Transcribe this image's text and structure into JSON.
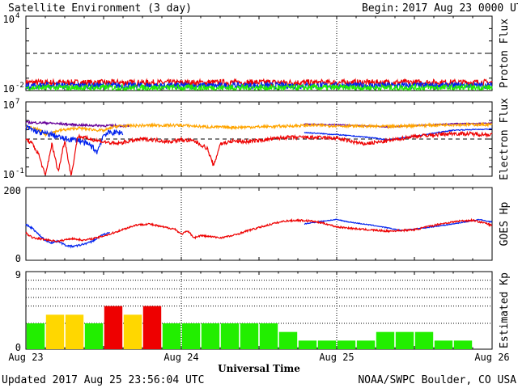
{
  "header": {
    "title": "Satellite Environment (3 day)",
    "begin_label": "Begin:",
    "begin_value": "2017 Aug 23 0000 UTC"
  },
  "footer": {
    "updated": "Updated 2017 Aug 25 23:56:04 UTC",
    "credit": "NOAA/SWPC Boulder, CO USA"
  },
  "colors": {
    "red": "#ee0000",
    "blue": "#0022ee",
    "green": "#22ee00",
    "orange": "#ffa500",
    "purple": "#660099",
    "yellow": "#ffd700"
  },
  "chart_data": [
    {
      "type": "line",
      "panel": "proton",
      "ylabel": "Proton Flux",
      "yscale": "log",
      "ylim": [
        0.01,
        10000
      ],
      "y_tick_labels": [
        {
          "base": "10",
          "exp": "4"
        },
        {
          "base": "10",
          "exp": "-2"
        }
      ],
      "reference_lines": [
        10
      ],
      "x_unit": "hours since Aug 23 00 UTC",
      "series": [
        {
          "color": "red",
          "noise": 0.25,
          "points": [
            [
              0,
              0.045
            ],
            [
              12,
              0.044
            ],
            [
              24,
              0.043
            ],
            [
              36,
              0.045
            ],
            [
              48,
              0.044
            ],
            [
              60,
              0.045
            ],
            [
              72,
              0.045
            ]
          ]
        },
        {
          "color": "blue",
          "noise": 0.25,
          "points": [
            [
              0,
              0.025
            ],
            [
              12,
              0.025
            ],
            [
              24,
              0.024
            ],
            [
              36,
              0.025
            ],
            [
              48,
              0.025
            ],
            [
              60,
              0.025
            ],
            [
              72,
              0.025
            ]
          ]
        },
        {
          "color": "green",
          "noise": 0.25,
          "points": [
            [
              0,
              0.017
            ],
            [
              12,
              0.017
            ],
            [
              24,
              0.017
            ],
            [
              36,
              0.017
            ],
            [
              48,
              0.017
            ],
            [
              60,
              0.017
            ],
            [
              72,
              0.017
            ]
          ]
        }
      ]
    },
    {
      "type": "line",
      "panel": "electron",
      "ylabel": "Electron Flux",
      "yscale": "log",
      "ylim": [
        0.1,
        10000000
      ],
      "y_tick_labels": [
        {
          "base": "10",
          "exp": "7"
        },
        {
          "base": "10",
          "exp": "-1"
        }
      ],
      "reference_lines": [
        1000
      ],
      "series": [
        {
          "color": "purple",
          "noise": 0.12,
          "points": [
            [
              0,
              60000
            ],
            [
              3,
              55000
            ],
            [
              6,
              40000
            ],
            [
              9,
              30000
            ],
            [
              12,
              28000
            ],
            [
              14,
              27000
            ],
            [
              16,
              25000
            ]
          ]
        },
        {
          "color": "purple",
          "noise": 0.05,
          "points": [
            [
              43,
              40000
            ],
            [
              48,
              35000
            ],
            [
              53,
              25000
            ],
            [
              56,
              20000
            ],
            [
              60,
              28000
            ],
            [
              66,
              45000
            ],
            [
              72,
              50000
            ]
          ]
        },
        {
          "color": "orange",
          "noise": 0.15,
          "points": [
            [
              0,
              20000
            ],
            [
              2,
              10000
            ],
            [
              3,
              3000
            ],
            [
              5,
              8000
            ],
            [
              8,
              15000
            ],
            [
              12,
              8000
            ],
            [
              14,
              25000
            ],
            [
              20,
              30000
            ],
            [
              24,
              30000
            ],
            [
              28,
              20000
            ],
            [
              32,
              18000
            ],
            [
              38,
              22000
            ],
            [
              44,
              30000
            ],
            [
              50,
              25000
            ],
            [
              56,
              22000
            ],
            [
              60,
              28000
            ],
            [
              66,
              35000
            ],
            [
              72,
              35000
            ]
          ]
        },
        {
          "color": "blue",
          "noise": 0.3,
          "points": [
            [
              0,
              20000
            ],
            [
              2,
              5000
            ],
            [
              4,
              3000
            ],
            [
              6,
              1000
            ],
            [
              8,
              800
            ],
            [
              10,
              200
            ],
            [
              11,
              40
            ],
            [
              12,
              3000
            ],
            [
              13,
              5000
            ],
            [
              15,
              5000
            ]
          ]
        },
        {
          "color": "blue",
          "noise": 0.05,
          "points": [
            [
              43,
              5000
            ],
            [
              48,
              3000
            ],
            [
              53,
              1500
            ],
            [
              56,
              800
            ],
            [
              60,
              2000
            ],
            [
              66,
              9000
            ],
            [
              72,
              12000
            ]
          ]
        },
        {
          "color": "red",
          "noise": 0.2,
          "points": [
            [
              0,
              1000
            ],
            [
              1,
              300
            ],
            [
              2,
              20
            ],
            [
              3,
              0.1
            ],
            [
              4,
              300
            ],
            [
              5,
              0.3
            ],
            [
              6,
              800
            ],
            [
              7,
              0.1
            ],
            [
              8,
              2000
            ],
            [
              10,
              1000
            ],
            [
              12,
              500
            ],
            [
              14,
              300
            ],
            [
              16,
              600
            ],
            [
              18,
              1000
            ],
            [
              20,
              800
            ],
            [
              22,
              500
            ],
            [
              24,
              800
            ],
            [
              26,
              600
            ],
            [
              28,
              100
            ],
            [
              29,
              1.2
            ],
            [
              30,
              300
            ],
            [
              32,
              600
            ],
            [
              34,
              500
            ],
            [
              36,
              700
            ],
            [
              40,
              1500
            ],
            [
              44,
              1500
            ],
            [
              48,
              1200
            ],
            [
              52,
              300
            ],
            [
              55,
              500
            ],
            [
              60,
              2000
            ],
            [
              66,
              4000
            ],
            [
              72,
              3000
            ]
          ]
        }
      ]
    },
    {
      "type": "line",
      "panel": "goes_hp",
      "ylabel": "GOES Hp",
      "ylim": [
        0,
        200
      ],
      "y_tick_labels": [
        "200",
        "0"
      ],
      "series": [
        {
          "color": "blue",
          "noise": 2.5,
          "points": [
            [
              0,
              98
            ],
            [
              1,
              88
            ],
            [
              2,
              70
            ],
            [
              3,
              55
            ],
            [
              4,
              48
            ],
            [
              5,
              53
            ],
            [
              6,
              42
            ],
            [
              7,
              38
            ],
            [
              8,
              40
            ],
            [
              9,
              45
            ],
            [
              10,
              50
            ],
            [
              11,
              60
            ],
            [
              12,
              72
            ],
            [
              13,
              75
            ]
          ]
        },
        {
          "color": "blue",
          "noise": 1.2,
          "points": [
            [
              43,
              100
            ],
            [
              46,
              108
            ],
            [
              48,
              112
            ],
            [
              50,
              105
            ],
            [
              54,
              95
            ],
            [
              58,
              82
            ],
            [
              62,
              90
            ],
            [
              66,
              100
            ],
            [
              70,
              112
            ],
            [
              72,
              105
            ]
          ]
        },
        {
          "color": "red",
          "noise": 2.5,
          "points": [
            [
              0,
              75
            ],
            [
              1,
              62
            ],
            [
              3,
              57
            ],
            [
              5,
              52
            ],
            [
              7,
              60
            ],
            [
              9,
              55
            ],
            [
              11,
              62
            ],
            [
              13,
              72
            ],
            [
              15,
              85
            ],
            [
              17,
              97
            ],
            [
              19,
              100
            ],
            [
              21,
              92
            ],
            [
              23,
              86
            ],
            [
              24,
              72
            ],
            [
              25,
              80
            ],
            [
              26,
              62
            ],
            [
              27,
              68
            ],
            [
              28,
              66
            ],
            [
              30,
              62
            ],
            [
              32,
              68
            ],
            [
              34,
              80
            ],
            [
              36,
              90
            ],
            [
              38,
              100
            ],
            [
              40,
              108
            ],
            [
              42,
              110
            ],
            [
              44,
              108
            ],
            [
              46,
              102
            ],
            [
              48,
              92
            ],
            [
              52,
              85
            ],
            [
              56,
              80
            ],
            [
              60,
              84
            ],
            [
              64,
              100
            ],
            [
              67,
              108
            ],
            [
              69,
              110
            ],
            [
              71,
              102
            ],
            [
              72,
              95
            ]
          ]
        }
      ]
    },
    {
      "type": "bar",
      "panel": "kp",
      "ylabel": "Estimated Kp",
      "ylim": [
        0,
        9
      ],
      "y_tick_labels": [
        "9",
        "0"
      ],
      "reference_lines": [
        3,
        5,
        6,
        7,
        8
      ],
      "bin_hours": 3,
      "values": [
        3,
        4,
        4,
        3,
        5,
        4,
        5,
        3,
        3,
        3,
        3,
        3,
        3,
        2,
        1,
        1,
        1,
        1,
        2,
        2,
        2,
        1,
        1
      ],
      "colors": [
        "green",
        "yellow",
        "yellow",
        "green",
        "red",
        "yellow",
        "red",
        "green",
        "green",
        "green",
        "green",
        "green",
        "green",
        "green",
        "green",
        "green",
        "green",
        "green",
        "green",
        "green",
        "green",
        "green",
        "green"
      ]
    }
  ],
  "x_axis": {
    "label": "Universal Time",
    "ticks": [
      "Aug 23",
      "Aug 24",
      "Aug 25",
      "Aug 26"
    ]
  }
}
